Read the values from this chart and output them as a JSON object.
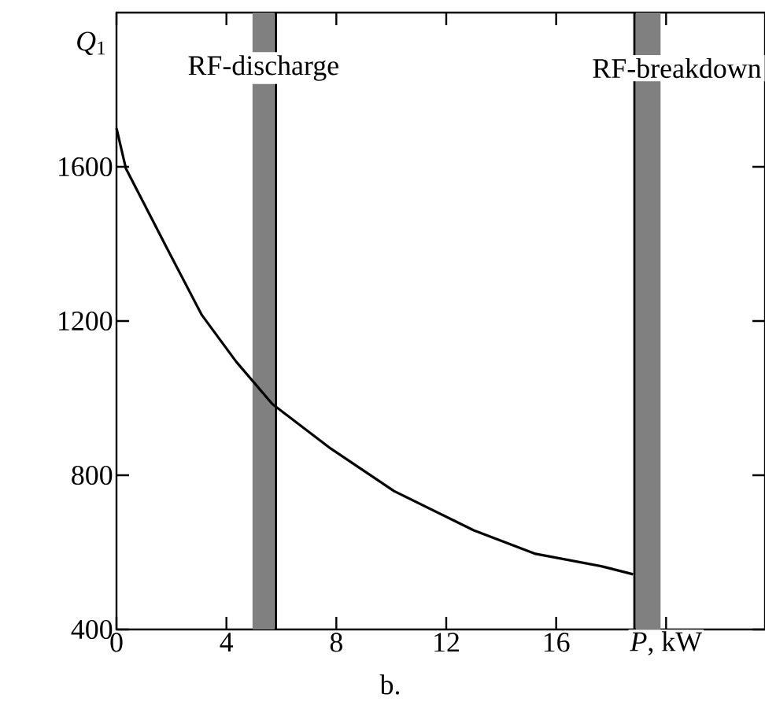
{
  "chart_data": {
    "type": "line",
    "xlabel": "*P*, kW",
    "ylabel": "*Q*$_{1}$",
    "annotations": [
      "b."
    ],
    "series": [
      {
        "color": "#000000",
        "x": [
          0,
          0.34,
          1.9,
          3.1,
          4.36,
          5.68,
          7.8,
          10.1,
          13.0,
          15.25,
          17.7,
          18.8
        ],
        "values": [
          1700,
          1596,
          1380,
          1216,
          1094,
          984,
          869,
          759,
          657,
          596,
          563,
          543
        ]
      }
    ],
    "xlim": [
      0,
      23.6
    ],
    "ylim": [
      400,
      2000
    ],
    "xticks": [
      0,
      4,
      8,
      12,
      16,
      {
        "value": 20,
        "label": null
      }
    ],
    "yticks": [
      400,
      800,
      1200,
      1600
    ],
    "bands": [
      {
        "axis": "x",
        "from": 4.95,
        "to": 5.75,
        "label": "RF-discharge",
        "color": "#808080"
      },
      {
        "axis": "x",
        "from": 18.9,
        "to": 19.8,
        "label": "RF-breakdown",
        "color": "#808080"
      }
    ],
    "ref_lines": [
      {
        "axis": "x",
        "value": 5.8,
        "color": "#000000"
      },
      {
        "axis": "x",
        "value": 18.85,
        "color": "#000000"
      }
    ],
    "grid": false,
    "marker": "none",
    "line_style": "solid"
  }
}
